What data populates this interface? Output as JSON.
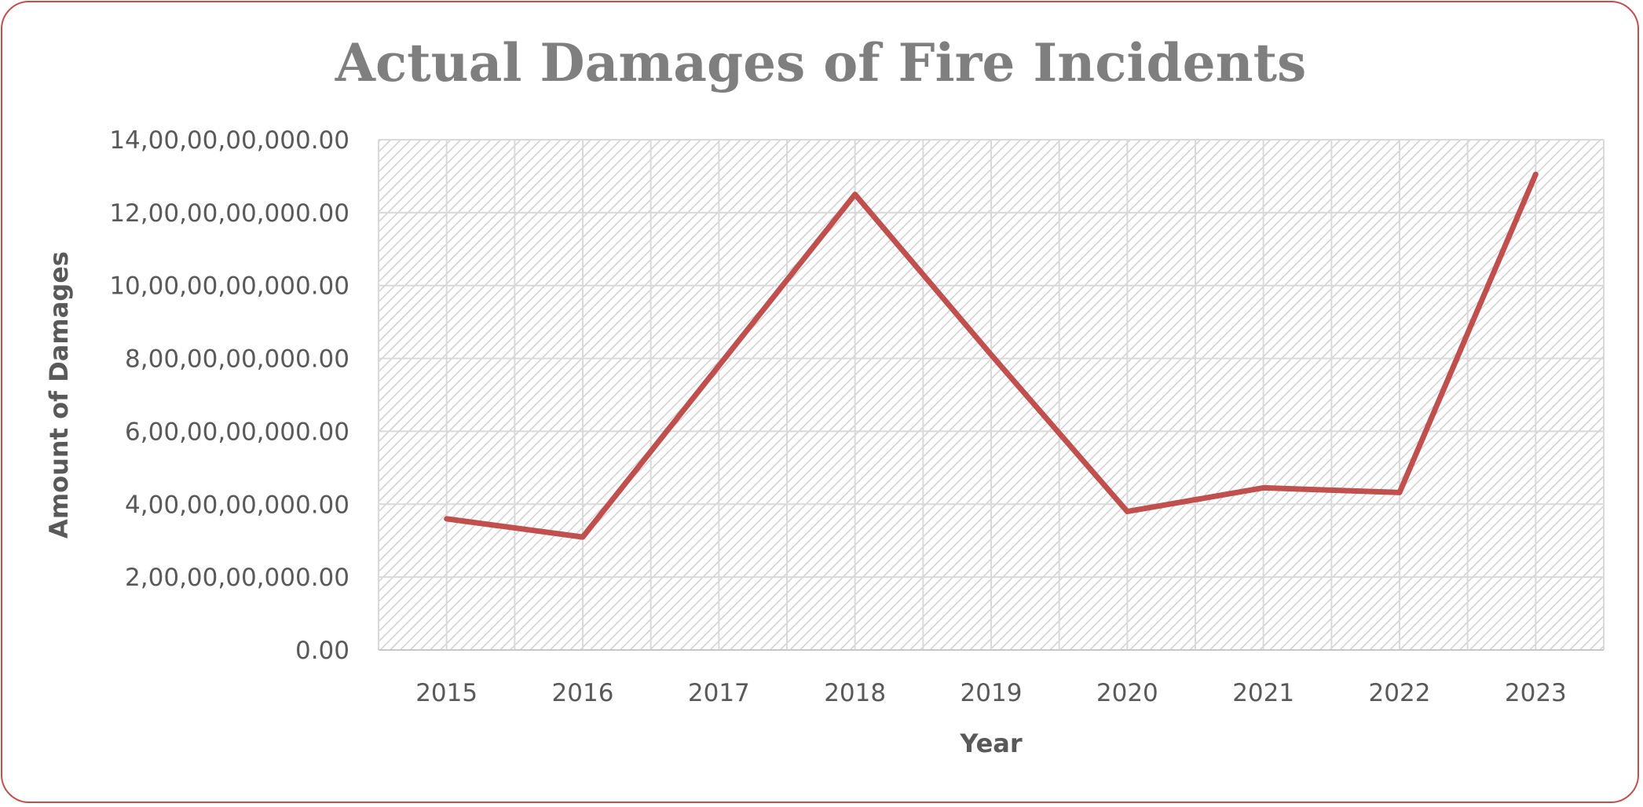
{
  "chart_data": {
    "type": "line",
    "title": "Actual Damages of Fire Incidents",
    "xlabel": "Year",
    "ylabel": "Amount of Damages",
    "categories": [
      "2015",
      "2016",
      "2017",
      "2018",
      "2019",
      "2020",
      "2021",
      "2022",
      "2023"
    ],
    "series": [
      {
        "values": [
          3600000000,
          3100000000,
          7800000000,
          12500000000,
          8100000000,
          3800000000,
          4450000000,
          4320000000,
          13050000000
        ]
      }
    ],
    "ylim": [
      0,
      14000000000
    ],
    "y_ticks": [
      {
        "value": 0,
        "label": "0.00"
      },
      {
        "value": 2000000000,
        "label": "2,00,00,00,000.00"
      },
      {
        "value": 4000000000,
        "label": "4,00,00,00,000.00"
      },
      {
        "value": 6000000000,
        "label": "6,00,00,00,000.00"
      },
      {
        "value": 8000000000,
        "label": "8,00,00,00,000.00"
      },
      {
        "value": 10000000000,
        "label": "10,00,00,00,000.00"
      },
      {
        "value": 12000000000,
        "label": "12,00,00,00,000.00"
      },
      {
        "value": 14000000000,
        "label": "14,00,00,00,000.00"
      }
    ],
    "grid": true,
    "legend": "none",
    "colors": {
      "line": "#c0504d",
      "frame": "#c0504d",
      "title": "#7f7f7f",
      "text": "#595959",
      "grid": "#d9d9d9",
      "hatch": "#d0d0d0"
    }
  }
}
